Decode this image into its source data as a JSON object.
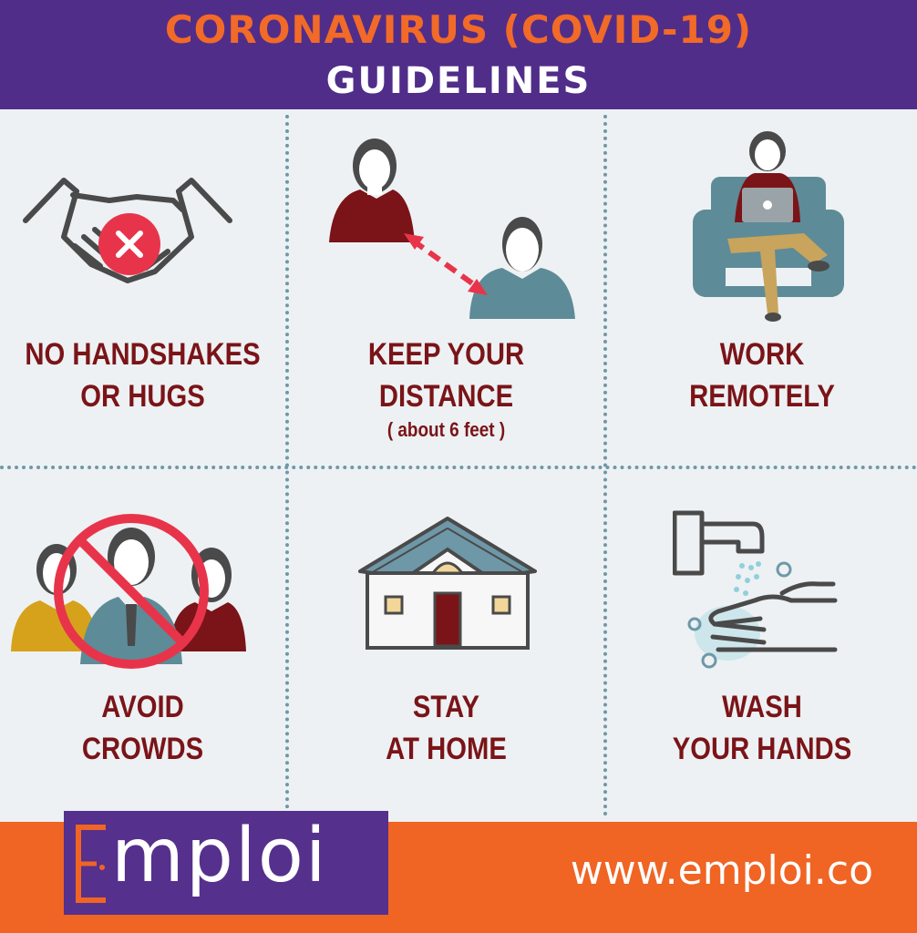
{
  "header": {
    "title": "CORONAVIRUS (COVID-19)",
    "subtitle": "GUIDELINES"
  },
  "guidelines": [
    {
      "line1": "NO HANDSHAKES",
      "line2": "OR HUGS",
      "note": "",
      "icon": "no-handshake-icon"
    },
    {
      "line1": "KEEP YOUR",
      "line2": "DISTANCE",
      "note": "( about 6 feet )",
      "icon": "distance-icon"
    },
    {
      "line1": "WORK",
      "line2": "REMOTELY",
      "note": "",
      "icon": "work-remotely-icon"
    },
    {
      "line1": "AVOID",
      "line2": "CROWDS",
      "note": "",
      "icon": "no-crowd-icon"
    },
    {
      "line1": "STAY",
      "line2": "AT HOME",
      "note": "",
      "icon": "house-icon"
    },
    {
      "line1": "WASH",
      "line2": "YOUR HANDS",
      "note": "",
      "icon": "hand-washing-icon"
    }
  ],
  "footer": {
    "logo_text": "mploi",
    "website": "www.emploi.co"
  },
  "colors": {
    "header_bg": "#512d8a",
    "title": "#f26a27",
    "caption": "#7a1418",
    "footer_bg": "#f06424",
    "divider": "#6e98a8"
  }
}
